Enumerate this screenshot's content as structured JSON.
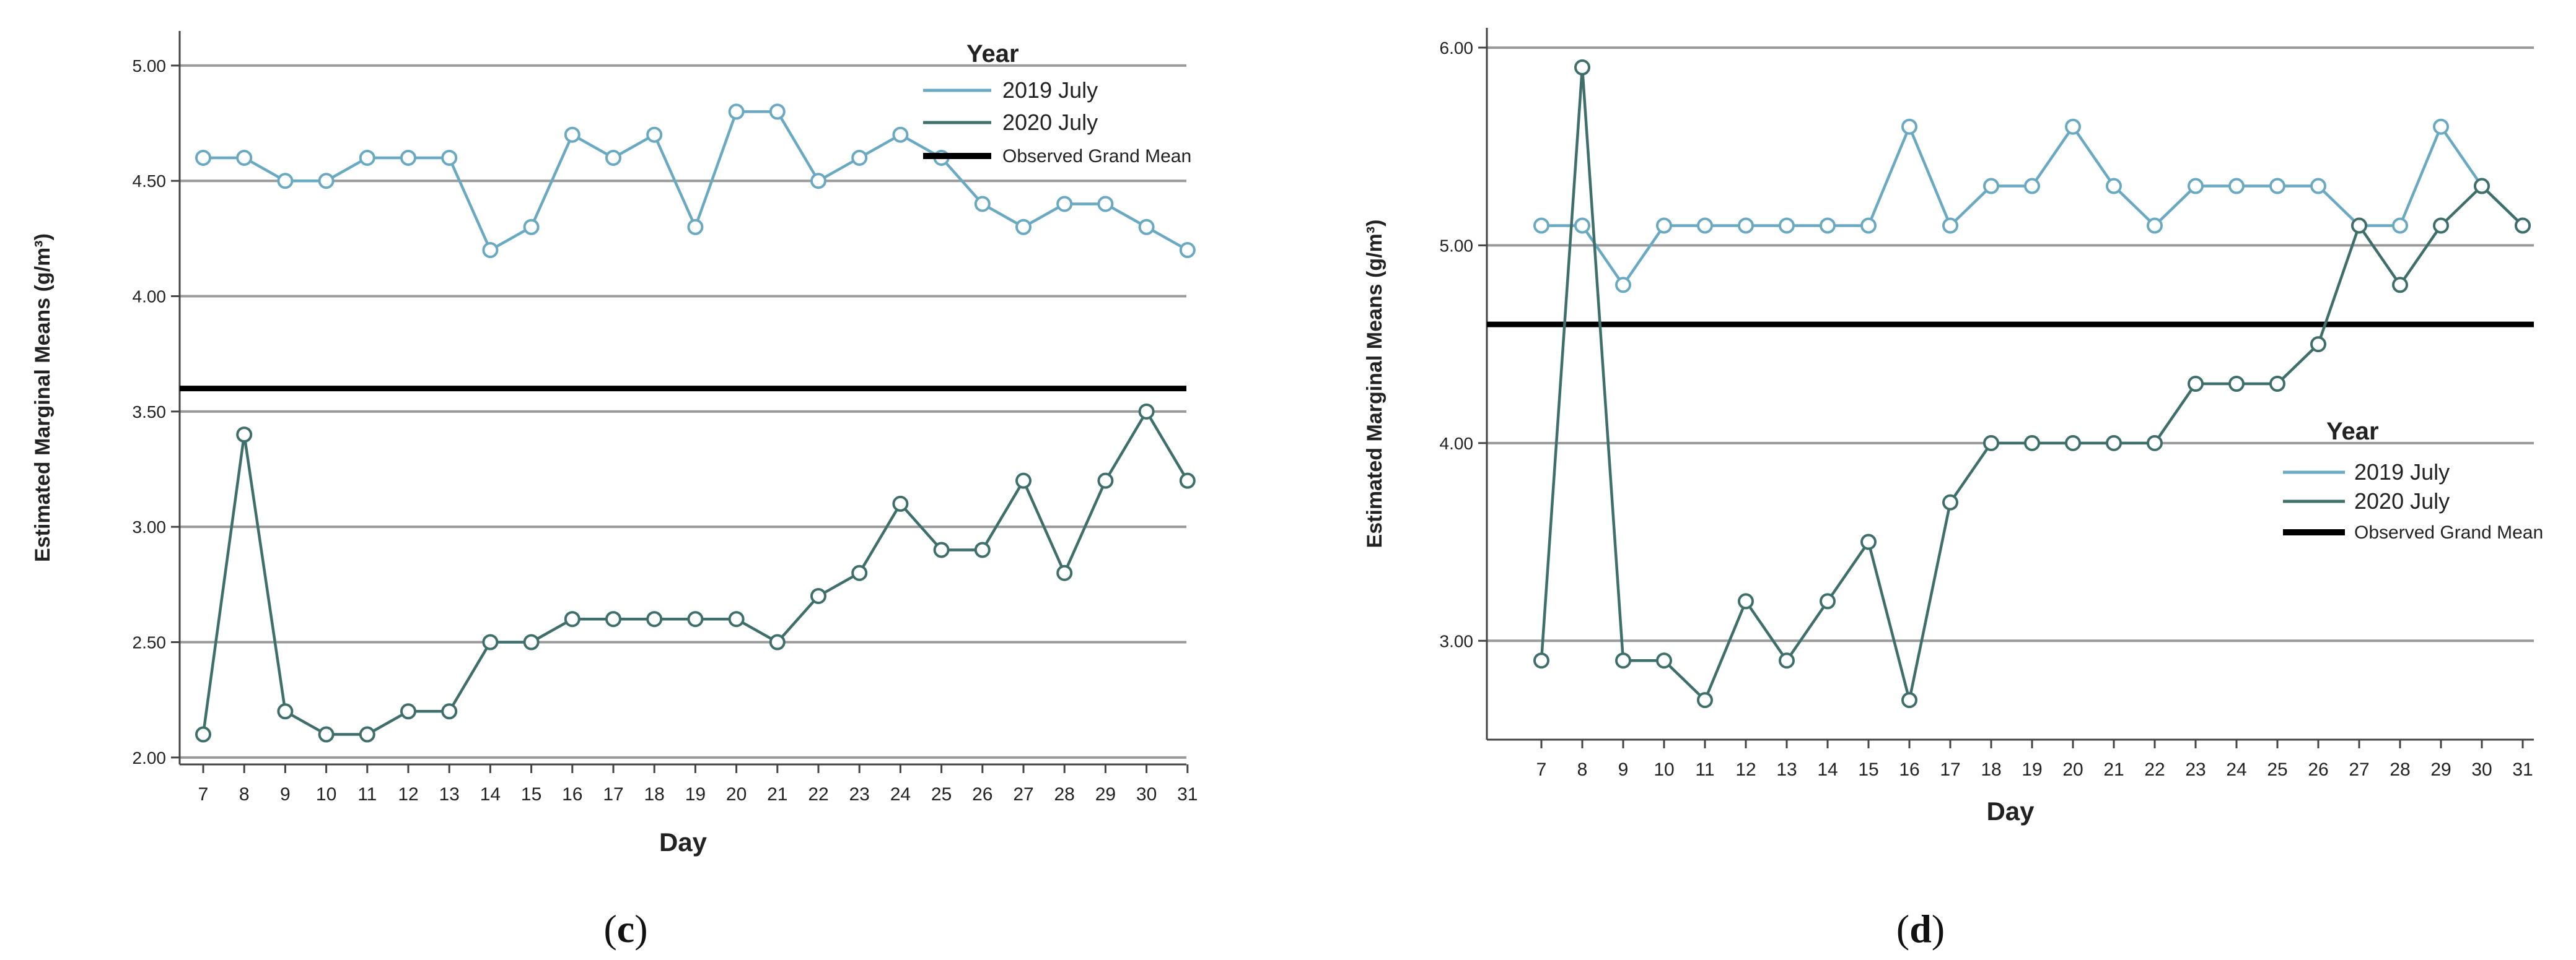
{
  "colors": {
    "series_2019": "#6aa9c2",
    "series_2020": "#3f6f6a",
    "grand_mean": "#000000",
    "grid": "#9a9a9a",
    "axis": "#444444"
  },
  "chart_data": [
    {
      "type": "line",
      "panel_label": "c",
      "xlabel": "Day",
      "ylabel": "Estimated Marginal Means (g/m³)",
      "categories": [
        "7",
        "8",
        "9",
        "10",
        "11",
        "12",
        "13",
        "14",
        "15",
        "16",
        "17",
        "18",
        "19",
        "20",
        "21",
        "22",
        "23",
        "24",
        "25",
        "26",
        "27",
        "28",
        "29",
        "30",
        "31"
      ],
      "ylim": [
        1.97,
        5.15
      ],
      "yticks": [
        2.0,
        2.5,
        3.0,
        3.5,
        4.0,
        4.5,
        5.0
      ],
      "ytick_labels": [
        "2.00",
        "2.50",
        "3.00",
        "3.50",
        "4.00",
        "4.50",
        "5.00"
      ],
      "grid": true,
      "legend_title": "Year",
      "legend_position": "top-right",
      "series": [
        {
          "name": "2019 July",
          "color_key": "series_2019",
          "values": [
            4.6,
            4.6,
            4.5,
            4.5,
            4.6,
            4.6,
            4.6,
            4.2,
            4.3,
            4.7,
            4.6,
            4.7,
            4.3,
            4.8,
            4.8,
            4.5,
            4.6,
            4.7,
            4.6,
            4.4,
            4.3,
            4.4,
            4.4,
            4.3,
            4.2
          ]
        },
        {
          "name": "2020 July",
          "color_key": "series_2020",
          "values": [
            2.1,
            3.4,
            2.2,
            2.1,
            2.1,
            2.2,
            2.2,
            2.5,
            2.5,
            2.6,
            2.6,
            2.6,
            2.6,
            2.6,
            2.5,
            2.7,
            2.8,
            3.1,
            2.9,
            2.9,
            3.2,
            2.8,
            3.2,
            3.5,
            3.2
          ]
        }
      ],
      "reference_line": {
        "name": "Observed Grand Mean",
        "value": 3.6
      }
    },
    {
      "type": "line",
      "panel_label": "d",
      "xlabel": "Day",
      "ylabel": "Estimated Marginal Means (g/m³)",
      "categories": [
        "7",
        "8",
        "9",
        "10",
        "11",
        "12",
        "13",
        "14",
        "15",
        "16",
        "17",
        "18",
        "19",
        "20",
        "21",
        "22",
        "23",
        "24",
        "25",
        "26",
        "27",
        "28",
        "29",
        "30",
        "31"
      ],
      "ylim": [
        2.5,
        6.1
      ],
      "yticks": [
        3.0,
        4.0,
        5.0,
        6.0
      ],
      "ytick_labels": [
        "3.00",
        "4.00",
        "5.00",
        "6.00"
      ],
      "grid": true,
      "legend_title": "Year",
      "legend_position": "middle-right",
      "series": [
        {
          "name": "2019 July",
          "color_key": "series_2019",
          "values": [
            5.1,
            5.1,
            4.8,
            5.1,
            5.1,
            5.1,
            5.1,
            5.1,
            5.1,
            5.6,
            5.1,
            5.3,
            5.3,
            5.6,
            5.3,
            5.1,
            5.3,
            5.3,
            5.3,
            5.3,
            5.1,
            5.1,
            5.6,
            5.3,
            5.1
          ]
        },
        {
          "name": "2020 July",
          "color_key": "series_2020",
          "values": [
            2.9,
            5.9,
            2.9,
            2.9,
            2.7,
            3.2,
            2.9,
            3.2,
            3.5,
            2.7,
            3.7,
            4.0,
            4.0,
            4.0,
            4.0,
            4.0,
            4.3,
            4.3,
            4.3,
            4.5,
            5.1,
            4.8,
            5.1,
            5.3,
            5.1
          ]
        }
      ],
      "reference_line": {
        "name": "Observed Grand Mean",
        "value": 4.6
      }
    }
  ]
}
